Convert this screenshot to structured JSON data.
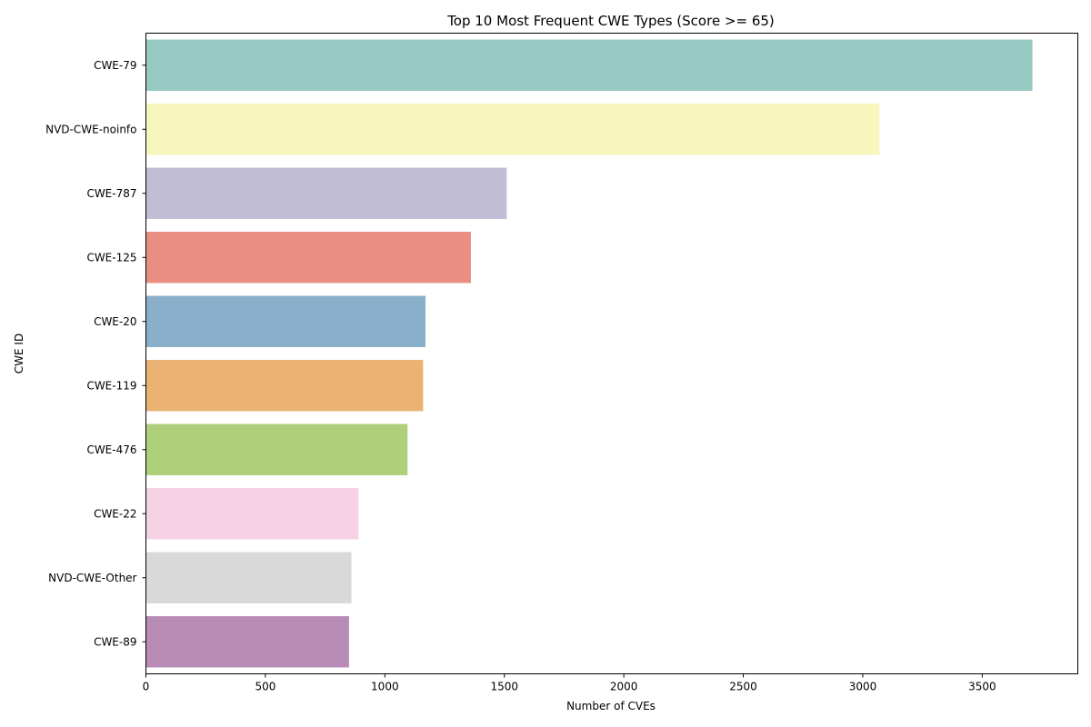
{
  "chart_data": {
    "type": "bar",
    "orientation": "horizontal",
    "title": "Top 10 Most Frequent CWE Types (Score >= 65)",
    "xlabel": "Number of CVEs",
    "ylabel": "CWE ID",
    "categories": [
      "CWE-79",
      "NVD-CWE-noinfo",
      "CWE-787",
      "CWE-125",
      "CWE-20",
      "CWE-119",
      "CWE-476",
      "CWE-22",
      "NVD-CWE-Other",
      "CWE-89"
    ],
    "values": [
      3710,
      3070,
      1510,
      1360,
      1170,
      1160,
      1095,
      890,
      860,
      850
    ],
    "colors": [
      "#97cac2",
      "#f6f6bd",
      "#c1bdd6",
      "#ea8e83",
      "#8aafca",
      "#eab374",
      "#afd07a",
      "#f5d2e4",
      "#d9d9d9",
      "#b88ab6"
    ],
    "xlim": [
      0,
      3900
    ],
    "xticks": [
      0,
      500,
      1000,
      1500,
      2000,
      2500,
      3000,
      3500
    ],
    "grid": false
  }
}
